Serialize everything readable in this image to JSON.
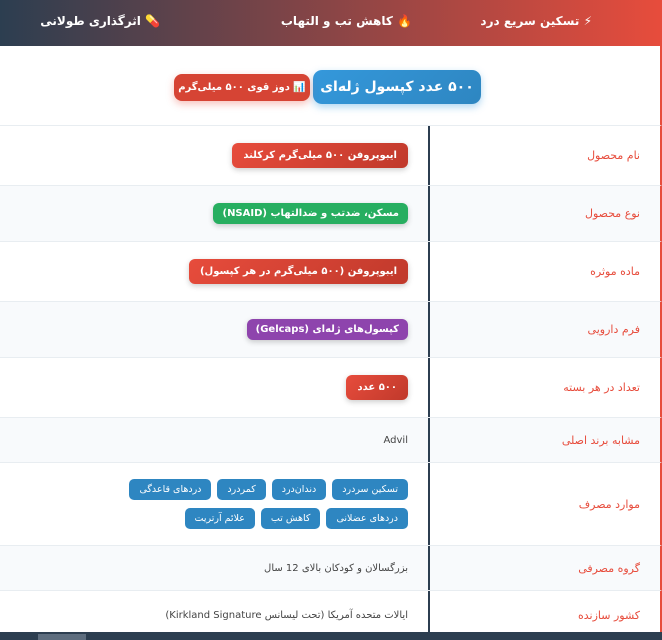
{
  "header": {
    "features": [
      {
        "icon": "⚡",
        "label": "تسکین سریع درد"
      },
      {
        "icon": "🔥",
        "label": "کاهش تب و التهاب"
      },
      {
        "icon": "💊",
        "label": "اثرگذاری طولانی"
      }
    ]
  },
  "hero": {
    "count_badge": "۵۰۰ عدد کپسول ژله‌ای",
    "dose_icon": "📊",
    "dose_badge": "دوز قوی ۵۰۰ میلی‌گرم"
  },
  "specs": [
    {
      "label": "نام محصول",
      "value": "ایبوپروفن ۵۰۰ میلی‌گرم کرکلند"
    },
    {
      "label": "نوع محصول",
      "value": "مسکن، ضدتب و ضدالتهاب (NSAID)"
    },
    {
      "label": "ماده موثره",
      "value": "ایبوپروفن (۵۰۰ میلی‌گرم در هر کپسول)"
    },
    {
      "label": "فرم دارویی",
      "value": "کپسول‌های ژله‌ای (Gelcaps)"
    },
    {
      "label": "تعداد در هر بسته",
      "value": "۵۰۰ عدد"
    },
    {
      "label": "مشابه برند اصلی",
      "value": "Advil"
    },
    {
      "label": "موارد مصرف",
      "tags": [
        "تسکین سردرد",
        "دندان‌درد",
        "کمردرد",
        "دردهای قاعدگی",
        "دردهای عضلانی",
        "کاهش تب",
        "علائم آرتریت"
      ]
    },
    {
      "label": "گروه مصرفی",
      "value": "بزرگسالان و کودکان بالای 12 سال"
    },
    {
      "label": "کشور سازنده",
      "value": "ایالات متحده آمریکا (تحت لیسانس Kirkland Signature)"
    }
  ]
}
